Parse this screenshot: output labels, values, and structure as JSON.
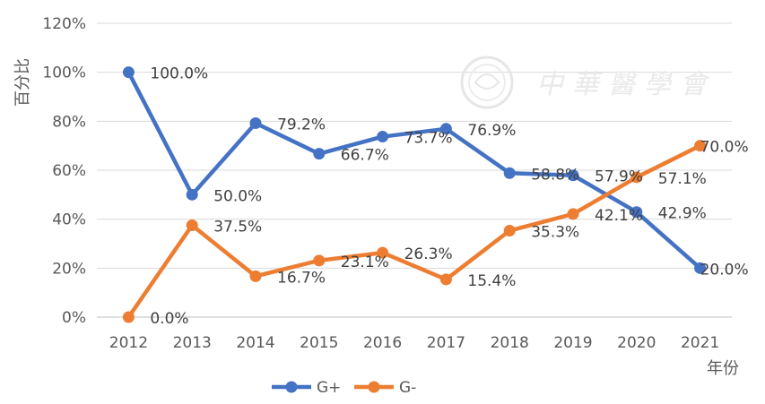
{
  "chart_data": {
    "type": "line",
    "title": "",
    "xlabel": "年份",
    "ylabel": "百分比",
    "categories": [
      "2012",
      "2013",
      "2014",
      "2015",
      "2016",
      "2017",
      "2018",
      "2019",
      "2020",
      "2021"
    ],
    "ylim": [
      0,
      120
    ],
    "yticks": [
      0,
      20,
      40,
      60,
      80,
      100,
      120
    ],
    "ytick_labels": [
      "0%",
      "20%",
      "40%",
      "60%",
      "80%",
      "100%",
      "120%"
    ],
    "grid": true,
    "legend_position": "bottom",
    "series": [
      {
        "name": "G+",
        "color": "#4472C4",
        "values": [
          100.0,
          50.0,
          79.2,
          66.7,
          73.7,
          76.9,
          58.8,
          57.9,
          42.9,
          20.0
        ],
        "labels": [
          "100.0%",
          "50.0%",
          "79.2%",
          "66.7%",
          "73.7%",
          "76.9%",
          "58.8%",
          "57.9%",
          "42.9%",
          "20.0%"
        ]
      },
      {
        "name": "G-",
        "color": "#ED7D31",
        "values": [
          0.0,
          37.5,
          16.7,
          23.1,
          26.3,
          15.4,
          35.3,
          42.1,
          57.1,
          70.0
        ],
        "labels": [
          "0.0%",
          "37.5%",
          "16.7%",
          "23.1%",
          "26.3%",
          "15.4%",
          "35.3%",
          "42.1%",
          "57.1%",
          "70.0%"
        ]
      }
    ]
  },
  "watermark": {
    "text": "中華醫學會"
  }
}
